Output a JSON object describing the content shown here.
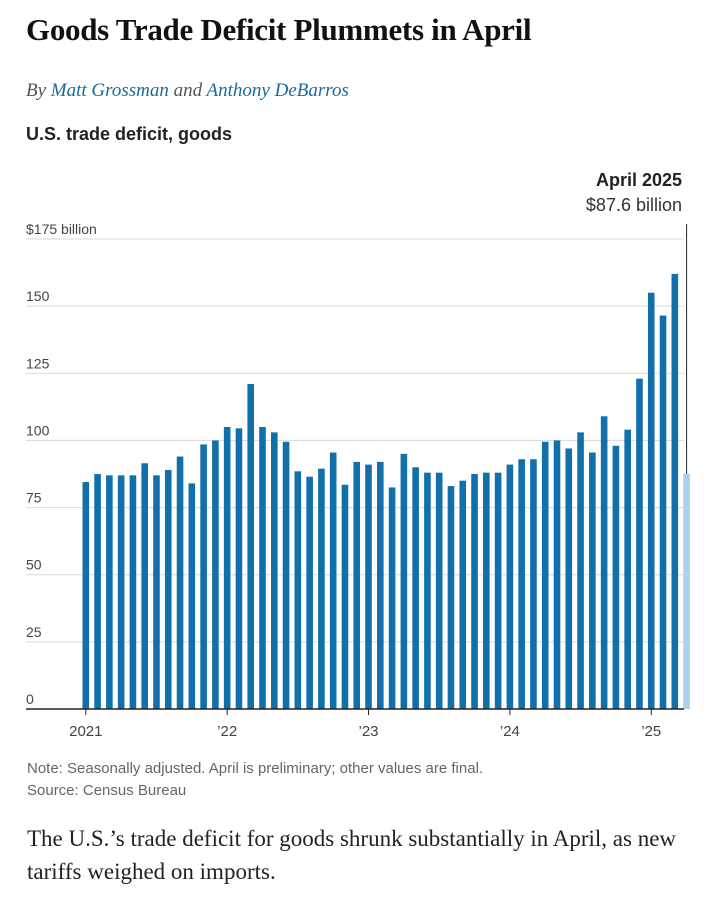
{
  "article": {
    "headline": "Goods Trade Deficit Plummets in April",
    "byline_prefix": "By",
    "author_1": "Matt Grossman",
    "byline_joiner": "and",
    "author_2": "Anthony DeBarros",
    "caption": "The U.S.’s trade deficit for goods shrunk substantially in April, as new tariffs weighed on imports."
  },
  "chart_data": {
    "type": "bar",
    "title": "U.S. trade deficit, goods",
    "xlabel": "",
    "ylabel": "",
    "unit": "billion",
    "ylim": [
      0,
      175
    ],
    "yticks": [
      0,
      25,
      50,
      75,
      100,
      125,
      150,
      175
    ],
    "ytick_labels": [
      "0",
      "25",
      "50",
      "75",
      "100",
      "125",
      "150",
      "$175 billion"
    ],
    "grid": true,
    "x_ticks": [
      {
        "label": "2021",
        "index": 0
      },
      {
        "label": "’22",
        "index": 12
      },
      {
        "label": "’23",
        "index": 24
      },
      {
        "label": "’24",
        "index": 36
      },
      {
        "label": "’25",
        "index": 48
      }
    ],
    "categories": [
      "Jan 2021",
      "Feb 2021",
      "Mar 2021",
      "Apr 2021",
      "May 2021",
      "Jun 2021",
      "Jul 2021",
      "Aug 2021",
      "Sep 2021",
      "Oct 2021",
      "Nov 2021",
      "Dec 2021",
      "Jan 2022",
      "Feb 2022",
      "Mar 2022",
      "Apr 2022",
      "May 2022",
      "Jun 2022",
      "Jul 2022",
      "Aug 2022",
      "Sep 2022",
      "Oct 2022",
      "Nov 2022",
      "Dec 2022",
      "Jan 2023",
      "Feb 2023",
      "Mar 2023",
      "Apr 2023",
      "May 2023",
      "Jun 2023",
      "Jul 2023",
      "Aug 2023",
      "Sep 2023",
      "Oct 2023",
      "Nov 2023",
      "Dec 2023",
      "Jan 2024",
      "Feb 2024",
      "Mar 2024",
      "Apr 2024",
      "May 2024",
      "Jun 2024",
      "Jul 2024",
      "Aug 2024",
      "Sep 2024",
      "Oct 2024",
      "Nov 2024",
      "Dec 2024",
      "Jan 2025",
      "Feb 2025",
      "Mar 2025",
      "Apr 2025"
    ],
    "values": [
      84.5,
      87.5,
      87,
      87,
      87,
      91.5,
      87,
      89,
      94,
      84,
      98.5,
      100,
      105,
      104.5,
      121,
      105,
      103,
      99.5,
      88.5,
      86.5,
      89.5,
      95.5,
      83.5,
      92,
      91,
      92,
      82.5,
      95,
      90,
      88,
      88,
      83,
      85,
      87.5,
      88,
      88,
      91,
      93,
      93,
      99.5,
      100,
      97,
      103,
      95.5,
      109,
      98,
      104,
      123,
      155,
      146.5,
      162,
      87.6
    ],
    "preliminary_index": 51,
    "colors": {
      "final": "#1170aa",
      "preliminary": "#a9d1ec",
      "grid": "#d9d9d9",
      "axis": "#222222",
      "tick_text": "#444444"
    },
    "annotation": {
      "title": "April 2025",
      "value": "$87.6 billion",
      "index": 51
    }
  },
  "footer": {
    "note": "Note: Seasonally adjusted. April is preliminary; other values are final.",
    "source": "Source: Census Bureau"
  }
}
